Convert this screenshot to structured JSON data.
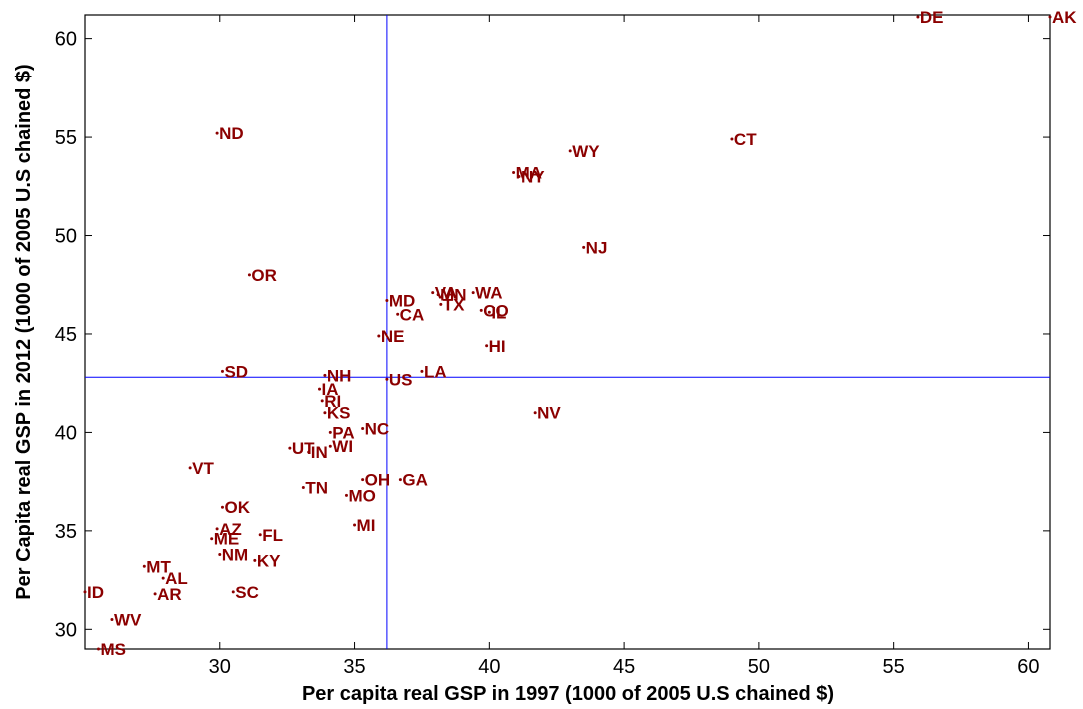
{
  "colors": {
    "points": "#8b0000",
    "reference_lines": "#0000ff",
    "axes": "#000000"
  },
  "chart_data": {
    "type": "scatter",
    "xlabel": "Per capita real GSP in 1997 (1000 of 2005 U.S chained $)",
    "ylabel": "Per Capita real GSP in 2012 (1000 of 2005 U.S chained $)",
    "xlim": [
      25,
      60.8
    ],
    "ylim": [
      29,
      61.2
    ],
    "xticks": [
      30,
      35,
      40,
      45,
      50,
      55,
      60
    ],
    "yticks": [
      30,
      35,
      40,
      45,
      50,
      55,
      60
    ],
    "grid": false,
    "reference_lines": {
      "x": 36.2,
      "y": 42.8
    },
    "points": [
      {
        "label": "AK",
        "x": 60.8,
        "y": 61.1
      },
      {
        "label": "DE",
        "x": 55.9,
        "y": 61.1
      },
      {
        "label": "CT",
        "x": 49.0,
        "y": 54.9
      },
      {
        "label": "WY",
        "x": 43.0,
        "y": 54.3
      },
      {
        "label": "MA",
        "x": 40.9,
        "y": 53.2
      },
      {
        "label": "NY",
        "x": 41.1,
        "y": 53.0
      },
      {
        "label": "NJ",
        "x": 43.5,
        "y": 49.4
      },
      {
        "label": "ND",
        "x": 29.9,
        "y": 55.2
      },
      {
        "label": "OR",
        "x": 31.1,
        "y": 48.0
      },
      {
        "label": "VA",
        "x": 37.9,
        "y": 47.1
      },
      {
        "label": "MN",
        "x": 38.1,
        "y": 47.0
      },
      {
        "label": "WA",
        "x": 39.4,
        "y": 47.1
      },
      {
        "label": "MD",
        "x": 36.2,
        "y": 46.7
      },
      {
        "label": "TX",
        "x": 38.2,
        "y": 46.5
      },
      {
        "label": "CO",
        "x": 39.7,
        "y": 46.2
      },
      {
        "label": "IL",
        "x": 40.0,
        "y": 46.1
      },
      {
        "label": "CA",
        "x": 36.6,
        "y": 46.0
      },
      {
        "label": "NE",
        "x": 35.9,
        "y": 44.9
      },
      {
        "label": "HI",
        "x": 39.9,
        "y": 44.4
      },
      {
        "label": "SD",
        "x": 30.1,
        "y": 43.1
      },
      {
        "label": "NH",
        "x": 33.9,
        "y": 42.9
      },
      {
        "label": "LA",
        "x": 37.5,
        "y": 43.1
      },
      {
        "label": "US",
        "x": 36.2,
        "y": 42.7
      },
      {
        "label": "IA",
        "x": 33.7,
        "y": 42.2
      },
      {
        "label": "RI",
        "x": 33.8,
        "y": 41.6
      },
      {
        "label": "KS",
        "x": 33.9,
        "y": 41.0
      },
      {
        "label": "NV",
        "x": 41.7,
        "y": 41.0
      },
      {
        "label": "PA",
        "x": 34.1,
        "y": 40.0
      },
      {
        "label": "NC",
        "x": 35.3,
        "y": 40.2
      },
      {
        "label": "UT",
        "x": 32.6,
        "y": 39.2
      },
      {
        "label": "IN",
        "x": 33.3,
        "y": 39.0
      },
      {
        "label": "WI",
        "x": 34.1,
        "y": 39.3
      },
      {
        "label": "VT",
        "x": 28.9,
        "y": 38.2
      },
      {
        "label": "OH",
        "x": 35.3,
        "y": 37.6
      },
      {
        "label": "GA",
        "x": 36.7,
        "y": 37.6
      },
      {
        "label": "TN",
        "x": 33.1,
        "y": 37.2
      },
      {
        "label": "MO",
        "x": 34.7,
        "y": 36.8
      },
      {
        "label": "OK",
        "x": 30.1,
        "y": 36.2
      },
      {
        "label": "MI",
        "x": 35.0,
        "y": 35.3
      },
      {
        "label": "AZ",
        "x": 29.9,
        "y": 35.1
      },
      {
        "label": "FL",
        "x": 31.5,
        "y": 34.8
      },
      {
        "label": "ME",
        "x": 29.7,
        "y": 34.6
      },
      {
        "label": "NM",
        "x": 30.0,
        "y": 33.8
      },
      {
        "label": "KY",
        "x": 31.3,
        "y": 33.5
      },
      {
        "label": "MT",
        "x": 27.2,
        "y": 33.2
      },
      {
        "label": "AL",
        "x": 27.9,
        "y": 32.6
      },
      {
        "label": "AR",
        "x": 27.6,
        "y": 31.8
      },
      {
        "label": "SC",
        "x": 30.5,
        "y": 31.9
      },
      {
        "label": "ID",
        "x": 25.0,
        "y": 31.9
      },
      {
        "label": "WV",
        "x": 26.0,
        "y": 30.5
      },
      {
        "label": "MS",
        "x": 25.5,
        "y": 29.0
      }
    ]
  }
}
